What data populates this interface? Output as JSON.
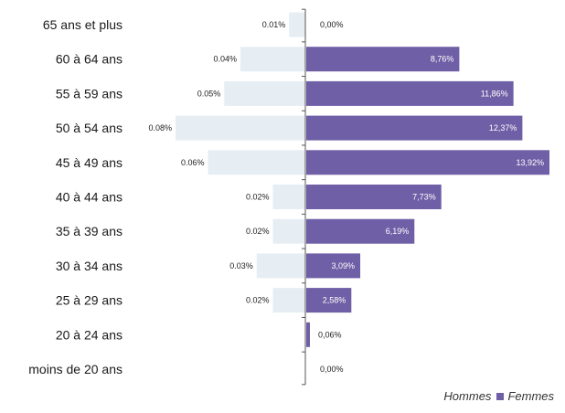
{
  "chart_data": {
    "type": "bar",
    "orientation": "horizontal",
    "categories": [
      "65 ans et plus",
      "60 à 64 ans",
      "55 à 59 ans",
      "50 à 54 ans",
      "45 à 49 ans",
      "40 à 44 ans",
      "35 à 39 ans",
      "30 à 34 ans",
      "25 à 29 ans",
      "20 à 24 ans",
      "moins de 20 ans"
    ],
    "series": [
      {
        "name": "Hommes",
        "color": "#e6eef4",
        "values": [
          0.01,
          0.04,
          0.05,
          0.08,
          0.06,
          0.02,
          0.02,
          0.03,
          0.02,
          null,
          null
        ],
        "labels": [
          "0.01%",
          "0.04%",
          "0.05%",
          "0.08%",
          "0.06%",
          "0.02%",
          "0.02%",
          "0.03%",
          "0.02%",
          null,
          null
        ]
      },
      {
        "name": "Femmes",
        "color": "#6f5fa6",
        "values": [
          0.0,
          8.76,
          11.86,
          12.37,
          13.92,
          7.73,
          6.19,
          3.09,
          2.58,
          0.06,
          0.0
        ],
        "labels": [
          "0,00%",
          "8,76%",
          "11,86%",
          "12,37%",
          "13,92%",
          "7,73%",
          "6,19%",
          "3,09%",
          "2,58%",
          "0,06%",
          "0,00%"
        ]
      }
    ],
    "title": "",
    "xlabel": "",
    "ylabel": "",
    "legend_position": "bottom-right",
    "grid": false
  },
  "legend": {
    "hommes": "Hommes",
    "femmes": "Femmes"
  }
}
